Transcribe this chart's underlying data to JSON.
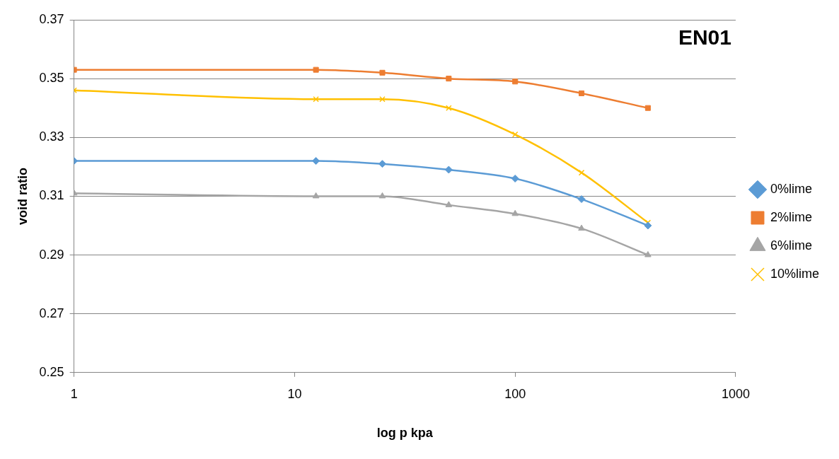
{
  "chart_data": {
    "type": "line",
    "title": "EN01",
    "xlabel": "log p kpa",
    "ylabel": "void ratio",
    "x": [
      1,
      12.5,
      25,
      50,
      100,
      200,
      400
    ],
    "log": "x",
    "xlim": [
      1,
      1000
    ],
    "xticks": [
      1,
      10,
      100,
      1000
    ],
    "ylim": [
      0.25,
      0.37
    ],
    "yticks": [
      0.25,
      0.27,
      0.29,
      0.31,
      0.33,
      0.35,
      0.37
    ],
    "grid": "y",
    "legend": "right",
    "series": [
      {
        "name": "0%lime",
        "color": "#5b9bd5",
        "marker": "diamond",
        "values": [
          0.322,
          0.322,
          0.321,
          0.319,
          0.316,
          0.309,
          0.3
        ]
      },
      {
        "name": "2%lime",
        "color": "#ed7d31",
        "marker": "square",
        "values": [
          0.353,
          0.353,
          0.352,
          0.35,
          0.349,
          0.345,
          0.34
        ]
      },
      {
        "name": "6%lime",
        "color": "#a5a5a5",
        "marker": "triangle",
        "values": [
          0.311,
          0.31,
          0.31,
          0.307,
          0.304,
          0.299,
          0.29
        ]
      },
      {
        "name": "10%lime",
        "color": "#ffc000",
        "marker": "cross",
        "values": [
          0.346,
          0.343,
          0.343,
          0.34,
          0.331,
          0.318,
          0.301
        ]
      }
    ]
  }
}
